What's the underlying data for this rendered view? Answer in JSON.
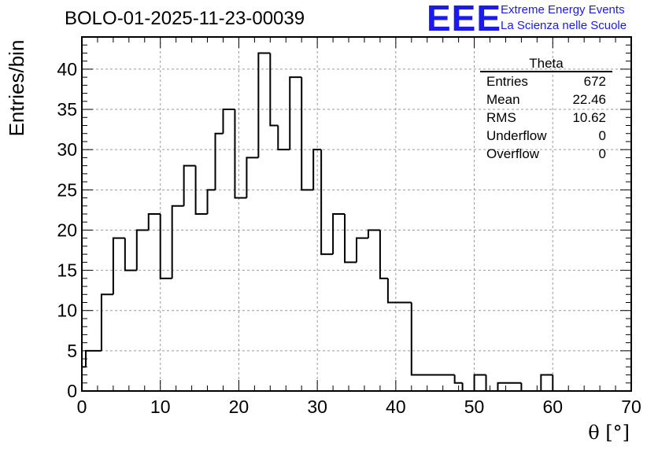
{
  "header": {
    "run_title": "BOLO-01-2025-11-23-00039",
    "logo_mark": "EEE",
    "logo_line1": "Extreme Energy Events",
    "logo_line2": "La Scienza nelle Scuole",
    "brand_color": "#1a1aee"
  },
  "stats_box": {
    "title": "Theta",
    "rows": [
      {
        "label": "Entries",
        "value": "672"
      },
      {
        "label": "Mean",
        "value": "22.46"
      },
      {
        "label": "RMS",
        "value": "10.62"
      },
      {
        "label": "Underflow",
        "value": "0"
      },
      {
        "label": "Overflow",
        "value": "0"
      }
    ]
  },
  "chart_data": {
    "type": "bar",
    "histogram": true,
    "bin_width": 1.5,
    "xlim": [
      0,
      70
    ],
    "ylim": [
      0,
      44
    ],
    "xlabel": "θ [°]",
    "ylabel": "Entries/bin",
    "x_ticks": [
      0,
      10,
      20,
      30,
      40,
      50,
      60,
      70
    ],
    "y_ticks": [
      0,
      5,
      10,
      15,
      20,
      25,
      30,
      35,
      40
    ],
    "grid": true,
    "bins": [
      {
        "x0": 0,
        "count": 3
      },
      {
        "x0": 0.5,
        "count": 5
      },
      {
        "x0": 2.5,
        "count": 12
      },
      {
        "x0": 4,
        "count": 19
      },
      {
        "x0": 5.5,
        "count": 15
      },
      {
        "x0": 7,
        "count": 20
      },
      {
        "x0": 8.5,
        "count": 22
      },
      {
        "x0": 10,
        "count": 14
      },
      {
        "x0": 11.5,
        "count": 23
      },
      {
        "x0": 13,
        "count": 28
      },
      {
        "x0": 14.5,
        "count": 22
      },
      {
        "x0": 16,
        "count": 25
      },
      {
        "x0": 17,
        "count": 32
      },
      {
        "x0": 18,
        "count": 35
      },
      {
        "x0": 19.5,
        "count": 24
      },
      {
        "x0": 21,
        "count": 29
      },
      {
        "x0": 22.5,
        "count": 42
      },
      {
        "x0": 24,
        "count": 33
      },
      {
        "x0": 25,
        "count": 30
      },
      {
        "x0": 26.5,
        "count": 39
      },
      {
        "x0": 28,
        "count": 25
      },
      {
        "x0": 29.5,
        "count": 30
      },
      {
        "x0": 30.5,
        "count": 17
      },
      {
        "x0": 32,
        "count": 22
      },
      {
        "x0": 33.5,
        "count": 16
      },
      {
        "x0": 35,
        "count": 19
      },
      {
        "x0": 36.5,
        "count": 20
      },
      {
        "x0": 38,
        "count": 14
      },
      {
        "x0": 39,
        "count": 11
      },
      {
        "x0": 42,
        "count": 2
      },
      {
        "x0": 47.5,
        "count": 1
      },
      {
        "x0": 48.5,
        "count": 0
      },
      {
        "x0": 50,
        "count": 2
      },
      {
        "x0": 51.5,
        "count": 0
      },
      {
        "x0": 53,
        "count": 1
      },
      {
        "x0": 56,
        "count": 0
      },
      {
        "x0": 58.5,
        "count": 2
      },
      {
        "x0": 60,
        "count": 0
      }
    ],
    "x_end": 70,
    "line_color": "#000000"
  }
}
